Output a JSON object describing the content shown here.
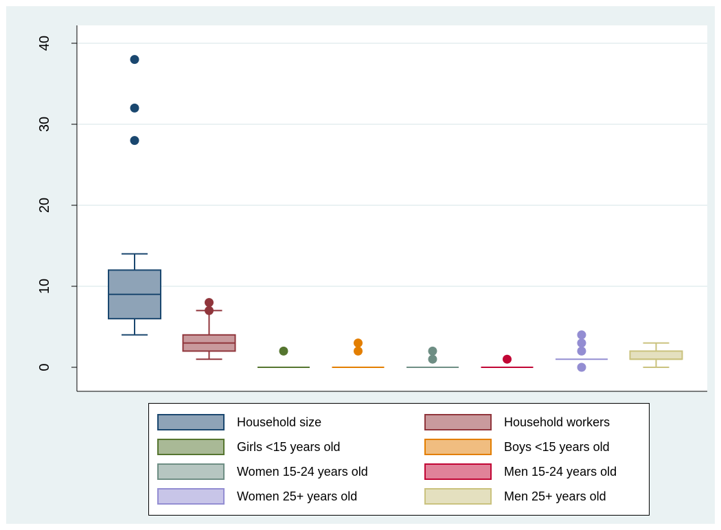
{
  "chart_data": {
    "type": "box",
    "y_ticks": [
      0,
      10,
      20,
      30,
      40
    ],
    "ylim": [
      -2,
      40.5
    ],
    "grid": true,
    "legend_position": "bottom",
    "series": [
      {
        "name": "Household size",
        "color": "#1a476f",
        "fill": "#8ea3b7",
        "min": 4,
        "q1": 6,
        "median": 9,
        "q3": 12,
        "max": 14,
        "outliers": [
          28,
          32,
          38
        ]
      },
      {
        "name": "Household workers",
        "color": "#90353b",
        "fill": "#c99a9d",
        "min": 1,
        "q1": 2,
        "median": 3,
        "q3": 4,
        "max": 7,
        "outliers": [
          7,
          8
        ]
      },
      {
        "name": "Girls <15 years old",
        "color": "#55752f",
        "fill": "#a9b996",
        "min": 0,
        "q1": 0,
        "median": 0,
        "q3": 0,
        "max": 0,
        "outliers": [
          2
        ]
      },
      {
        "name": "Boys <15 years old",
        "color": "#e37e00",
        "fill": "#f0bd80",
        "min": 0,
        "q1": 0,
        "median": 0,
        "q3": 0,
        "max": 0,
        "outliers": [
          2,
          3
        ]
      },
      {
        "name": "Women 15-24 years old",
        "color": "#6e8e84",
        "fill": "#b6c6c1",
        "min": 0,
        "q1": 0,
        "median": 0,
        "q3": 0,
        "max": 0,
        "outliers": [
          1,
          2
        ]
      },
      {
        "name": "Men 15-24 years old",
        "color": "#c10534",
        "fill": "#e08299",
        "min": 0,
        "q1": 0,
        "median": 0,
        "q3": 0,
        "max": 0,
        "outliers": [
          1
        ]
      },
      {
        "name": "Women 25+ years old",
        "color": "#938dd2",
        "fill": "#c8c5e8",
        "min": 1,
        "q1": 1,
        "median": 1,
        "q3": 1,
        "max": 1,
        "outliers": [
          0,
          2,
          3,
          4
        ]
      },
      {
        "name": "Men 25+ years old",
        "color": "#cac27e",
        "fill": "#e4e0bf",
        "min": 0,
        "q1": 1,
        "median": 1,
        "q3": 2,
        "max": 3,
        "outliers": []
      }
    ]
  }
}
